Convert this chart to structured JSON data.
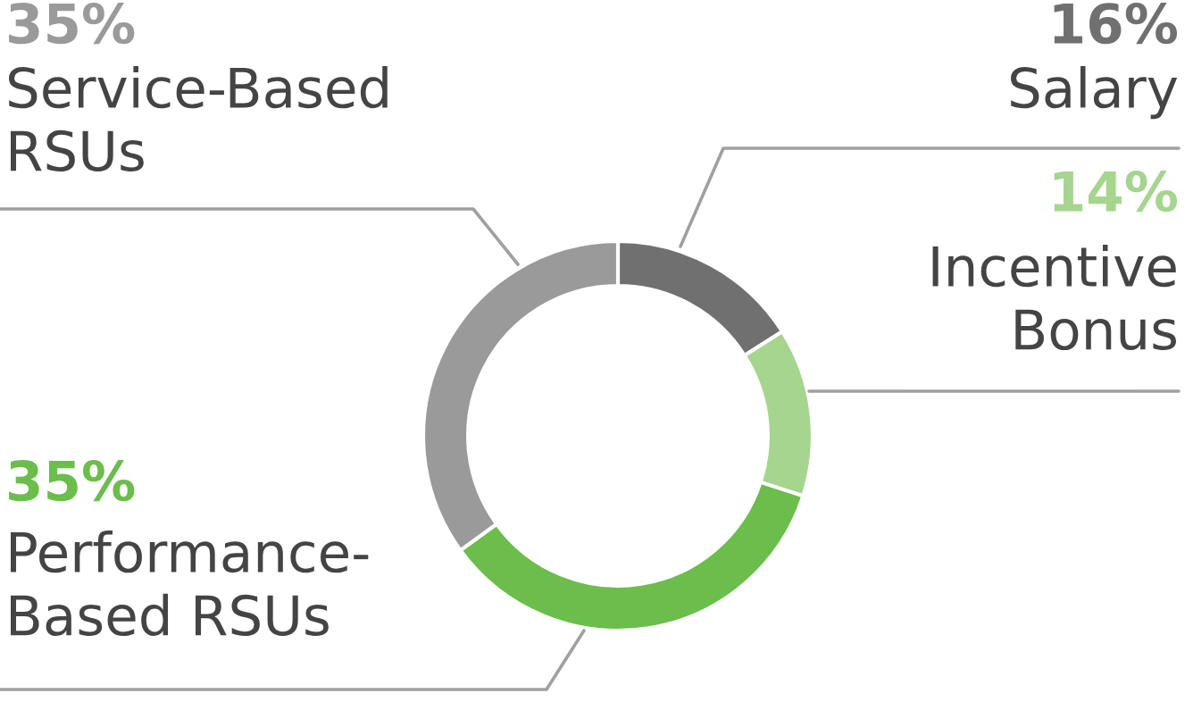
{
  "chart_data": {
    "type": "donut",
    "categories": [
      "Salary",
      "Incentive\nBonus",
      "Performance-\nBased RSUs",
      "Service-Based\nRSUs"
    ],
    "values": [
      16,
      14,
      35,
      35
    ],
    "colors": [
      "#707070",
      "#a5d58e",
      "#6bbd4c",
      "#9a9a9a"
    ],
    "value_labels": [
      "16%",
      "14%",
      "35%",
      "35%"
    ],
    "legend": false
  }
}
